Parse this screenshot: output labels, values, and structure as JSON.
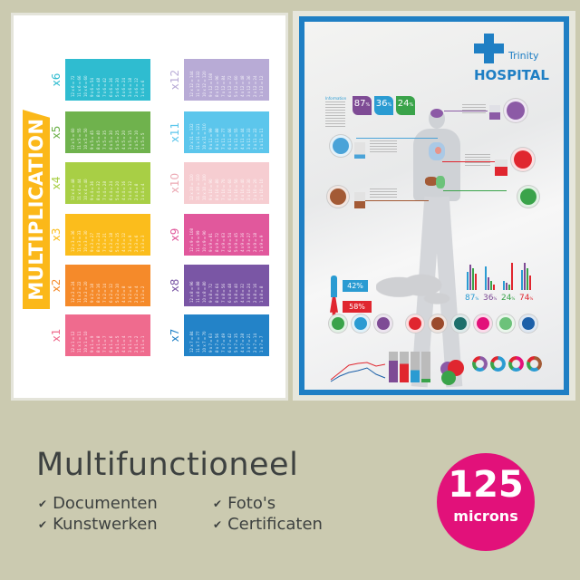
{
  "left_poster": {
    "title": "MULTIPLICATION",
    "tables": [
      {
        "label": "x1",
        "n": 1,
        "color": "#ef6b8e"
      },
      {
        "label": "x2",
        "n": 2,
        "color": "#f58a2a"
      },
      {
        "label": "x3",
        "n": 3,
        "color": "#fbbd1c"
      },
      {
        "label": "x4",
        "n": 4,
        "color": "#a8cf45"
      },
      {
        "label": "x5",
        "n": 5,
        "color": "#6fb24d"
      },
      {
        "label": "x6",
        "n": 6,
        "color": "#2fbcd0"
      },
      {
        "label": "x7",
        "n": 7,
        "color": "#2383c8"
      },
      {
        "label": "x8",
        "n": 8,
        "color": "#7a56a5"
      },
      {
        "label": "x9",
        "n": 9,
        "color": "#e1589c"
      },
      {
        "label": "x10",
        "n": 10,
        "color": "#f6cdd1"
      },
      {
        "label": "x11",
        "n": 11,
        "color": "#5cc6ec"
      },
      {
        "label": "x12",
        "n": 12,
        "color": "#b8abd6"
      }
    ]
  },
  "right_poster": {
    "brand_small": "Trinity",
    "brand_large": "HOSPITAL",
    "info_heading": "Information",
    "stats": [
      {
        "value": "87",
        "unit": "%",
        "color": "#7e4b95"
      },
      {
        "value": "36",
        "unit": "%",
        "color": "#2a9bd2"
      },
      {
        "value": "24",
        "unit": "%",
        "color": "#3aa34a"
      }
    ],
    "male_pct": "42%",
    "female_pct": "58%",
    "bar_stats": [
      {
        "value": "87",
        "unit": "%",
        "color": "#2a9bd2"
      },
      {
        "value": "36",
        "unit": "%",
        "color": "#7e4b95"
      },
      {
        "value": "24",
        "unit": "%",
        "color": "#3aa34a"
      },
      {
        "value": "74",
        "unit": "%",
        "color": "#e0262f"
      }
    ],
    "icon_circles": [
      {
        "icon": "stomach-icon",
        "color": "#3aa34a"
      },
      {
        "icon": "lungs-icon",
        "color": "#2a9bd2"
      },
      {
        "icon": "brain-icon",
        "color": "#7e4b95"
      },
      {
        "icon": "heart-organ-icon",
        "color": "#e0262f"
      },
      {
        "icon": "liver-icon",
        "color": "#9b4a2c"
      },
      {
        "icon": "tooth-icon",
        "color": "#1d6f6b"
      },
      {
        "icon": "heart-icon",
        "color": "#e2117a"
      },
      {
        "icon": "sleep-icon",
        "color": "#6cc27a"
      },
      {
        "icon": "apple-icon",
        "color": "#1b5fa8"
      }
    ],
    "colors": {
      "frame": "#1f7fc4",
      "male": "#2a9bd2",
      "female": "#e0262f"
    }
  },
  "footer": {
    "headline": "Multifunctioneel",
    "features": [
      "Documenten",
      "Kunstwerken",
      "Foto's",
      "Certificaten"
    ],
    "check_icon": "check-icon",
    "badge": {
      "number": "125",
      "unit": "microns",
      "color": "#e2117a"
    }
  }
}
